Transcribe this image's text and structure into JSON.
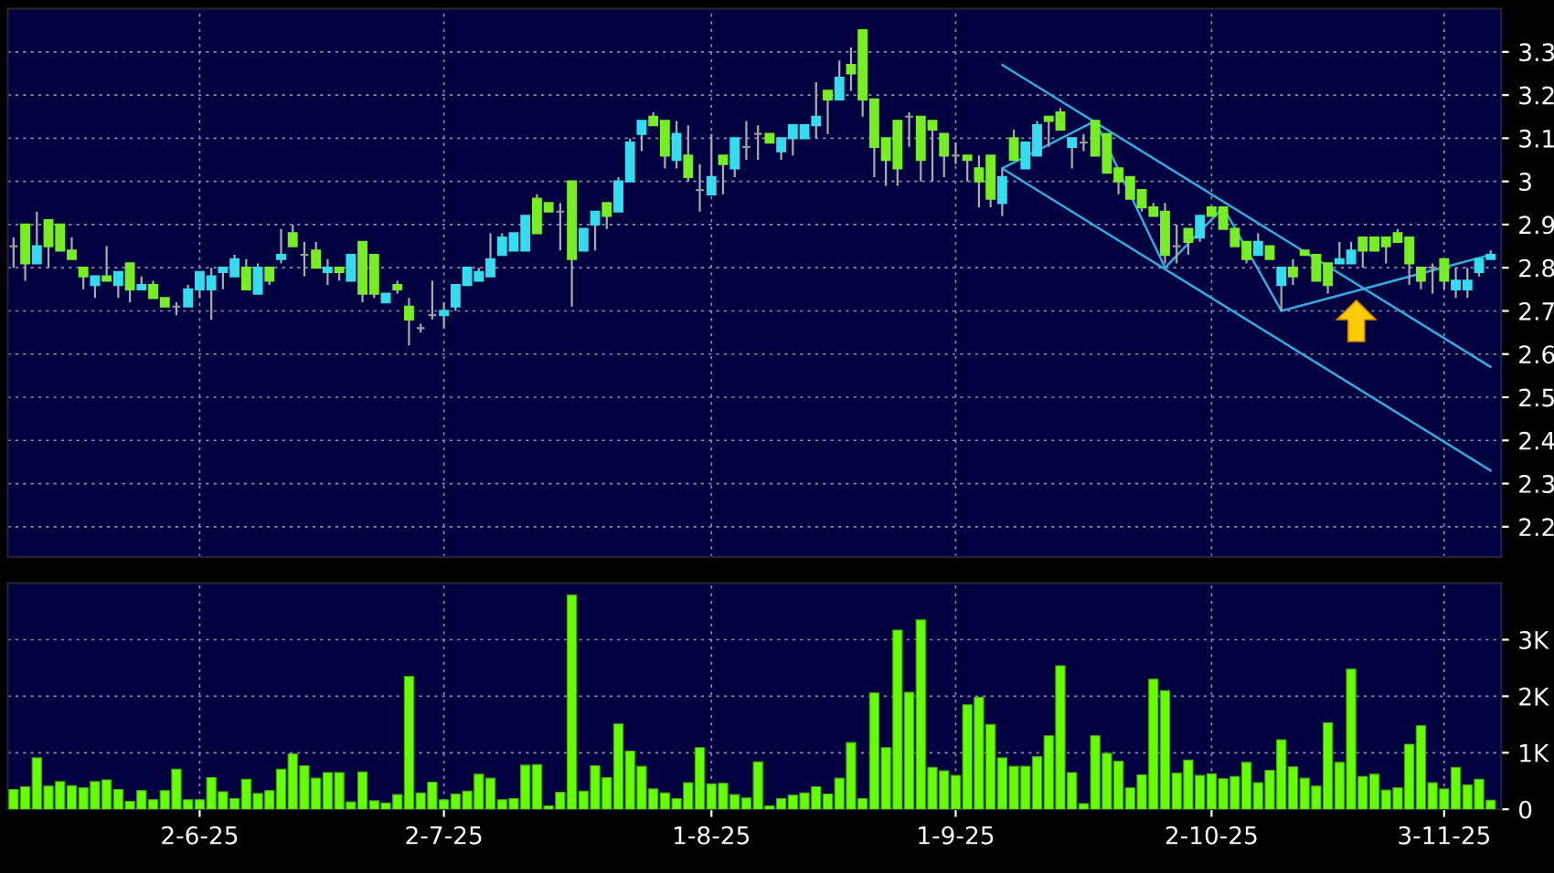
{
  "chart_data": [
    {
      "type": "candlestick",
      "categories": [
        null,
        null,
        null,
        null,
        null,
        null,
        null,
        null,
        null,
        null,
        null,
        null,
        null,
        null,
        null,
        null,
        null,
        null,
        null,
        null,
        null,
        null,
        null,
        null,
        null,
        null,
        null,
        null,
        null,
        null,
        null,
        null,
        null,
        null,
        null,
        null,
        null,
        null,
        null,
        null,
        null,
        null,
        null,
        null,
        null,
        null,
        null,
        null,
        null,
        null,
        null,
        null,
        null,
        null,
        null,
        null,
        null,
        null,
        null,
        null,
        null,
        null,
        null,
        null,
        null,
        null,
        null,
        null,
        null,
        null,
        null,
        null,
        null,
        null,
        null,
        null,
        null,
        null,
        null,
        null,
        null,
        null,
        null,
        null,
        null,
        null,
        null,
        null,
        null,
        null,
        null,
        null,
        null,
        null,
        null,
        null,
        null,
        null,
        null,
        null,
        null,
        null,
        null,
        null,
        null,
        null,
        null,
        null,
        null,
        null,
        null,
        null,
        null,
        null,
        null,
        null,
        null,
        null,
        null,
        null,
        null,
        null,
        null,
        null,
        null,
        null,
        null,
        null
      ],
      "ohlc": [
        [
          2.85,
          2.87,
          2.8,
          2.85
        ],
        [
          2.81,
          2.9,
          2.77,
          2.9
        ],
        [
          2.85,
          2.93,
          2.81,
          2.81
        ],
        [
          2.85,
          2.91,
          2.8,
          2.91
        ],
        [
          2.84,
          2.9,
          2.84,
          2.9
        ],
        [
          2.82,
          2.87,
          2.82,
          2.84
        ],
        [
          2.78,
          2.8,
          2.75,
          2.8
        ],
        [
          2.78,
          2.78,
          2.73,
          2.76
        ],
        [
          2.77,
          2.85,
          2.77,
          2.78
        ],
        [
          2.79,
          2.79,
          2.73,
          2.76
        ],
        [
          2.75,
          2.81,
          2.72,
          2.81
        ],
        [
          2.76,
          2.78,
          2.75,
          2.75
        ],
        [
          2.73,
          2.77,
          2.73,
          2.76
        ],
        [
          2.71,
          2.73,
          2.71,
          2.73
        ],
        [
          2.71,
          2.72,
          2.69,
          2.71
        ],
        [
          2.75,
          2.76,
          2.71,
          2.71
        ],
        [
          2.79,
          2.79,
          2.73,
          2.75
        ],
        [
          2.78,
          2.8,
          2.68,
          2.75
        ],
        [
          2.8,
          2.8,
          2.75,
          2.79
        ],
        [
          2.82,
          2.83,
          2.78,
          2.78
        ],
        [
          2.75,
          2.82,
          2.75,
          2.8
        ],
        [
          2.8,
          2.81,
          2.74,
          2.74
        ],
        [
          2.77,
          2.8,
          2.76,
          2.8
        ],
        [
          2.83,
          2.89,
          2.81,
          2.82
        ],
        [
          2.85,
          2.9,
          2.85,
          2.88
        ],
        [
          2.83,
          2.86,
          2.78,
          2.83
        ],
        [
          2.8,
          2.86,
          2.8,
          2.84
        ],
        [
          2.8,
          2.82,
          2.76,
          2.79
        ],
        [
          2.79,
          2.8,
          2.77,
          2.8
        ],
        [
          2.83,
          2.83,
          2.77,
          2.77
        ],
        [
          2.74,
          2.86,
          2.72,
          2.86
        ],
        [
          2.74,
          2.83,
          2.73,
          2.83
        ],
        [
          2.74,
          2.74,
          2.72,
          2.72
        ],
        [
          2.75,
          2.77,
          2.74,
          2.76
        ],
        [
          2.68,
          2.73,
          2.62,
          2.71
        ],
        [
          2.66,
          2.67,
          2.65,
          2.66
        ],
        [
          2.69,
          2.77,
          2.68,
          2.69
        ],
        [
          2.7,
          2.72,
          2.66,
          2.69
        ],
        [
          2.76,
          2.76,
          2.7,
          2.71
        ],
        [
          2.8,
          2.8,
          2.76,
          2.76
        ],
        [
          2.79,
          2.8,
          2.77,
          2.77
        ],
        [
          2.82,
          2.88,
          2.78,
          2.78
        ],
        [
          2.87,
          2.88,
          2.83,
          2.83
        ],
        [
          2.88,
          2.88,
          2.84,
          2.84
        ],
        [
          2.92,
          2.92,
          2.84,
          2.84
        ],
        [
          2.88,
          2.97,
          2.88,
          2.96
        ],
        [
          2.93,
          2.95,
          2.93,
          2.95
        ],
        [
          2.93,
          2.95,
          2.84,
          2.93
        ],
        [
          2.82,
          3.0,
          2.71,
          3.0
        ],
        [
          2.89,
          2.89,
          2.84,
          2.84
        ],
        [
          2.93,
          2.93,
          2.84,
          2.9
        ],
        [
          2.92,
          2.95,
          2.89,
          2.95
        ],
        [
          3.0,
          3.01,
          2.93,
          2.93
        ],
        [
          3.09,
          3.1,
          3.0,
          3.0
        ],
        [
          3.14,
          3.14,
          3.07,
          3.11
        ],
        [
          3.13,
          3.16,
          3.13,
          3.15
        ],
        [
          3.06,
          3.14,
          3.03,
          3.14
        ],
        [
          3.11,
          3.14,
          3.03,
          3.05
        ],
        [
          3.01,
          3.13,
          3.0,
          3.06
        ],
        [
          2.98,
          3.04,
          2.93,
          2.98
        ],
        [
          3.01,
          3.11,
          2.97,
          2.97
        ],
        [
          3.04,
          3.06,
          2.97,
          3.06
        ],
        [
          3.1,
          3.1,
          3.01,
          3.03
        ],
        [
          3.08,
          3.14,
          3.05,
          3.08
        ],
        [
          3.11,
          3.13,
          3.05,
          3.11
        ],
        [
          3.09,
          3.11,
          3.09,
          3.11
        ],
        [
          3.1,
          3.1,
          3.05,
          3.07
        ],
        [
          3.13,
          3.13,
          3.06,
          3.1
        ],
        [
          3.13,
          3.13,
          3.1,
          3.1
        ],
        [
          3.15,
          3.23,
          3.1,
          3.13
        ],
        [
          3.19,
          3.21,
          3.11,
          3.21
        ],
        [
          3.24,
          3.28,
          3.19,
          3.19
        ],
        [
          3.25,
          3.31,
          3.21,
          3.27
        ],
        [
          3.19,
          3.35,
          3.15,
          3.35
        ],
        [
          3.08,
          3.19,
          3.01,
          3.19
        ],
        [
          3.05,
          3.1,
          2.99,
          3.1
        ],
        [
          3.03,
          3.14,
          2.99,
          3.14
        ],
        [
          3.15,
          3.16,
          3.08,
          3.15
        ],
        [
          3.05,
          3.15,
          3.0,
          3.15
        ],
        [
          3.12,
          3.14,
          3.0,
          3.14
        ],
        [
          3.06,
          3.11,
          3.01,
          3.11
        ],
        [
          3.06,
          3.09,
          3.04,
          3.06
        ],
        [
          3.05,
          3.06,
          3.0,
          3.06
        ],
        [
          3.0,
          3.06,
          2.94,
          3.03
        ],
        [
          2.96,
          3.06,
          2.94,
          3.06
        ],
        [
          3.01,
          3.03,
          2.92,
          2.95
        ],
        [
          3.05,
          3.12,
          3.05,
          3.1
        ],
        [
          3.09,
          3.09,
          3.03,
          3.03
        ],
        [
          3.13,
          3.14,
          3.06,
          3.06
        ],
        [
          3.14,
          3.15,
          3.08,
          3.15
        ],
        [
          3.12,
          3.17,
          3.12,
          3.16
        ],
        [
          3.1,
          3.1,
          3.03,
          3.08
        ],
        [
          3.09,
          3.11,
          3.07,
          3.09
        ],
        [
          3.06,
          3.14,
          3.06,
          3.14
        ],
        [
          3.02,
          3.11,
          3.02,
          3.11
        ],
        [
          3.0,
          3.03,
          2.97,
          3.03
        ],
        [
          2.96,
          3.01,
          2.96,
          3.01
        ],
        [
          2.94,
          2.98,
          2.93,
          2.98
        ],
        [
          2.92,
          2.95,
          2.92,
          2.94
        ],
        [
          2.83,
          2.95,
          2.81,
          2.93
        ],
        [
          2.85,
          2.9,
          2.81,
          2.85
        ],
        [
          2.86,
          2.89,
          2.83,
          2.89
        ],
        [
          2.92,
          2.92,
          2.86,
          2.87
        ],
        [
          2.92,
          2.94,
          2.92,
          2.94
        ],
        [
          2.89,
          2.94,
          2.89,
          2.94
        ],
        [
          2.85,
          2.89,
          2.85,
          2.89
        ],
        [
          2.82,
          2.86,
          2.81,
          2.86
        ],
        [
          2.86,
          2.88,
          2.83,
          2.83
        ],
        [
          2.82,
          2.85,
          2.82,
          2.85
        ],
        [
          2.8,
          2.8,
          2.7,
          2.76
        ],
        [
          2.78,
          2.82,
          2.76,
          2.8
        ],
        [
          2.83,
          2.84,
          2.83,
          2.84
        ],
        [
          2.77,
          2.83,
          2.77,
          2.83
        ],
        [
          2.76,
          2.81,
          2.74,
          2.81
        ],
        [
          2.82,
          2.86,
          2.81,
          2.81
        ],
        [
          2.84,
          2.86,
          2.81,
          2.81
        ],
        [
          2.84,
          2.87,
          2.8,
          2.87
        ],
        [
          2.84,
          2.87,
          2.84,
          2.87
        ],
        [
          2.85,
          2.87,
          2.81,
          2.87
        ],
        [
          2.86,
          2.89,
          2.86,
          2.88
        ],
        [
          2.81,
          2.87,
          2.76,
          2.87
        ],
        [
          2.77,
          2.8,
          2.75,
          2.8
        ],
        [
          2.8,
          2.81,
          2.74,
          2.8
        ],
        [
          2.77,
          2.82,
          2.75,
          2.82
        ],
        [
          2.77,
          2.8,
          2.73,
          2.75
        ],
        [
          2.77,
          2.8,
          2.73,
          2.75
        ],
        [
          2.82,
          2.82,
          2.78,
          2.79
        ],
        [
          2.83,
          2.84,
          2.82,
          2.82
        ]
      ],
      "colors": [
        "#999999",
        "#77ee22",
        "#33ddee",
        "#77ee22",
        "#77ee22",
        "#77ee22",
        "#77ee22",
        "#33ddee",
        "#77ee22",
        "#33ddee",
        "#77ee22",
        "#33ddee",
        "#77ee22",
        "#77ee22",
        "#999999",
        "#33ddee",
        "#33ddee",
        "#33ddee",
        "#33ddee",
        "#33ddee",
        "#77ee22",
        "#33ddee",
        "#77ee22",
        "#33ddee",
        "#77ee22",
        "#999999",
        "#77ee22",
        "#33ddee",
        "#77ee22",
        "#33ddee",
        "#77ee22",
        "#77ee22",
        "#33ddee",
        "#77ee22",
        "#77ee22",
        "#999999",
        "#999999",
        "#33ddee",
        "#33ddee",
        "#33ddee",
        "#33ddee",
        "#33ddee",
        "#33ddee",
        "#33ddee",
        "#33ddee",
        "#77ee22",
        "#77ee22",
        "#999999",
        "#77ee22",
        "#33ddee",
        "#33ddee",
        "#77ee22",
        "#33ddee",
        "#33ddee",
        "#33ddee",
        "#77ee22",
        "#77ee22",
        "#33ddee",
        "#77ee22",
        "#999999",
        "#33ddee",
        "#77ee22",
        "#33ddee",
        "#999999",
        "#999999",
        "#77ee22",
        "#33ddee",
        "#33ddee",
        "#33ddee",
        "#33ddee",
        "#77ee22",
        "#33ddee",
        "#77ee22",
        "#77ee22",
        "#77ee22",
        "#77ee22",
        "#77ee22",
        "#999999",
        "#77ee22",
        "#77ee22",
        "#77ee22",
        "#999999",
        "#77ee22",
        "#77ee22",
        "#77ee22",
        "#33ddee",
        "#77ee22",
        "#33ddee",
        "#33ddee",
        "#77ee22",
        "#77ee22",
        "#33ddee",
        "#999999",
        "#77ee22",
        "#77ee22",
        "#77ee22",
        "#77ee22",
        "#77ee22",
        "#77ee22",
        "#77ee22",
        "#999999",
        "#77ee22",
        "#33ddee",
        "#77ee22",
        "#77ee22",
        "#77ee22",
        "#77ee22",
        "#33ddee",
        "#77ee22",
        "#33ddee",
        "#77ee22",
        "#77ee22",
        "#77ee22",
        "#77ee22",
        "#33ddee",
        "#33ddee",
        "#77ee22",
        "#77ee22",
        "#77ee22",
        "#77ee22",
        "#77ee22",
        "#77ee22",
        "#999999",
        "#77ee22",
        "#33ddee",
        "#33ddee",
        "#33ddee",
        "#33ddee"
      ],
      "series": [
        {
          "type": "line",
          "color": "#33aadd",
          "values": [
            null,
            null,
            null,
            null,
            null,
            null,
            null,
            null,
            null,
            null,
            null,
            null,
            null,
            null,
            null,
            null,
            null,
            null,
            null,
            null,
            null,
            null,
            null,
            null,
            null,
            null,
            null,
            null,
            null,
            null,
            null,
            null,
            null,
            null,
            null,
            null,
            null,
            null,
            null,
            null,
            null,
            null,
            null,
            null,
            null,
            null,
            null,
            null,
            null,
            null,
            null,
            null,
            null,
            null,
            null,
            null,
            null,
            null,
            null,
            null,
            null,
            null,
            null,
            null,
            null,
            null,
            null,
            null,
            null,
            null,
            null,
            null,
            null,
            null,
            null,
            null,
            null,
            null,
            null,
            null,
            null,
            null,
            null,
            null,
            null,
            3.27,
            null,
            null,
            null,
            null,
            null,
            null,
            null,
            null,
            null,
            null,
            null,
            null,
            null,
            null,
            null,
            null,
            null,
            null,
            null,
            null,
            null,
            null,
            null,
            null,
            null,
            null,
            null,
            null,
            null,
            null,
            null,
            null,
            null,
            null,
            null,
            null,
            null,
            null,
            null,
            null,
            null,
            2.57
          ]
        },
        {
          "type": "line",
          "color": "#33aadd",
          "values": [
            null,
            null,
            null,
            null,
            null,
            null,
            null,
            null,
            null,
            null,
            null,
            null,
            null,
            null,
            null,
            null,
            null,
            null,
            null,
            null,
            null,
            null,
            null,
            null,
            null,
            null,
            null,
            null,
            null,
            null,
            null,
            null,
            null,
            null,
            null,
            null,
            null,
            null,
            null,
            null,
            null,
            null,
            null,
            null,
            null,
            null,
            null,
            null,
            null,
            null,
            null,
            null,
            null,
            null,
            null,
            null,
            null,
            null,
            null,
            null,
            null,
            null,
            null,
            null,
            null,
            null,
            null,
            null,
            null,
            null,
            null,
            null,
            null,
            null,
            null,
            null,
            null,
            null,
            null,
            null,
            null,
            null,
            null,
            null,
            null,
            3.03,
            null,
            null,
            null,
            null,
            null,
            null,
            null,
            null,
            null,
            null,
            null,
            null,
            null,
            null,
            null,
            null,
            null,
            null,
            null,
            null,
            null,
            null,
            null,
            null,
            null,
            null,
            null,
            null,
            null,
            null,
            null,
            null,
            null,
            null,
            null,
            null,
            null,
            null,
            null,
            null,
            null,
            2.33
          ]
        },
        {
          "type": "line",
          "color": "#33aadd",
          "values": [
            null,
            null,
            null,
            null,
            null,
            null,
            null,
            null,
            null,
            null,
            null,
            null,
            null,
            null,
            null,
            null,
            null,
            null,
            null,
            null,
            null,
            null,
            null,
            null,
            null,
            null,
            null,
            null,
            null,
            null,
            null,
            null,
            null,
            null,
            null,
            null,
            null,
            null,
            null,
            null,
            null,
            null,
            null,
            null,
            null,
            null,
            null,
            null,
            null,
            null,
            null,
            null,
            null,
            null,
            null,
            null,
            null,
            null,
            null,
            null,
            null,
            null,
            null,
            null,
            null,
            null,
            null,
            null,
            null,
            null,
            null,
            null,
            null,
            null,
            null,
            null,
            null,
            null,
            null,
            null,
            null,
            null,
            null,
            null,
            null,
            3.03,
            null,
            null,
            null,
            null,
            null,
            null,
            null,
            3.14,
            null,
            null,
            null,
            null,
            null,
            2.8,
            null,
            null,
            null,
            null,
            2.94,
            null,
            null,
            null,
            null,
            2.7,
            null,
            null,
            null,
            null,
            null,
            null,
            null,
            null,
            null,
            null,
            null,
            null,
            null,
            null,
            null,
            null,
            null,
            2.83
          ]
        }
      ],
      "ylim": [
        2.13,
        3.4
      ],
      "yticks": [
        2.2,
        2.3,
        2.4,
        2.5,
        2.6,
        2.7,
        2.8,
        2.9,
        3,
        3.1,
        3.2,
        3.3
      ],
      "tick_labels": "y",
      "grid": true
    },
    {
      "type": "bar",
      "categories": [
        null,
        null,
        null,
        null,
        null,
        null,
        null,
        null,
        null,
        null,
        null,
        null,
        null,
        null,
        null,
        null,
        "2-6-25",
        null,
        null,
        null,
        null,
        null,
        null,
        null,
        null,
        null,
        null,
        null,
        null,
        null,
        null,
        null,
        null,
        null,
        null,
        null,
        null,
        "2-7-25",
        null,
        null,
        null,
        null,
        null,
        null,
        null,
        null,
        null,
        null,
        null,
        null,
        null,
        null,
        null,
        null,
        null,
        null,
        null,
        null,
        null,
        null,
        "1-8-25",
        null,
        null,
        null,
        null,
        null,
        null,
        null,
        null,
        null,
        null,
        null,
        null,
        null,
        null,
        null,
        null,
        null,
        null,
        null,
        null,
        "1-9-25",
        null,
        null,
        null,
        null,
        null,
        null,
        null,
        null,
        null,
        null,
        null,
        null,
        null,
        null,
        null,
        null,
        null,
        null,
        null,
        null,
        null,
        "2-10-25",
        null,
        null,
        null,
        null,
        null,
        null,
        null,
        null,
        null,
        null,
        null,
        null,
        null,
        null,
        null,
        null,
        null,
        null,
        null,
        "3-11-25",
        null,
        null,
        null,
        null
      ],
      "color": "#66ff00",
      "values": [
        350,
        400,
        910,
        410,
        490,
        420,
        380,
        490,
        520,
        350,
        140,
        330,
        170,
        330,
        710,
        170,
        170,
        560,
        310,
        190,
        530,
        280,
        330,
        710,
        980,
        770,
        550,
        650,
        650,
        130,
        660,
        150,
        110,
        260,
        2350,
        290,
        480,
        170,
        270,
        320,
        620,
        550,
        170,
        190,
        780,
        790,
        60,
        300,
        3790,
        320,
        770,
        560,
        1510,
        1030,
        760,
        360,
        290,
        190,
        470,
        1090,
        450,
        460,
        260,
        200,
        840,
        60,
        190,
        250,
        290,
        400,
        270,
        550,
        1180,
        190,
        2060,
        1090,
        3170,
        2070,
        3350,
        740,
        680,
        600,
        1850,
        1980,
        1500,
        910,
        760,
        760,
        930,
        1300,
        2540,
        650,
        100,
        1300,
        990,
        850,
        380,
        610,
        2300,
        2100,
        640,
        870,
        600,
        630,
        540,
        580,
        830,
        470,
        690,
        1230,
        750,
        550,
        410,
        1530,
        830,
        2480,
        580,
        620,
        340,
        380,
        1150,
        1480,
        470,
        360,
        740,
        430,
        530,
        160
      ],
      "ylim": [
        0,
        4000
      ],
      "yticks": [
        0,
        {
          "value": 1000,
          "label": "1K"
        },
        {
          "value": 2000,
          "label": "2K"
        },
        {
          "value": 3000,
          "label": "3K"
        }
      ],
      "grid": true
    }
  ]
}
